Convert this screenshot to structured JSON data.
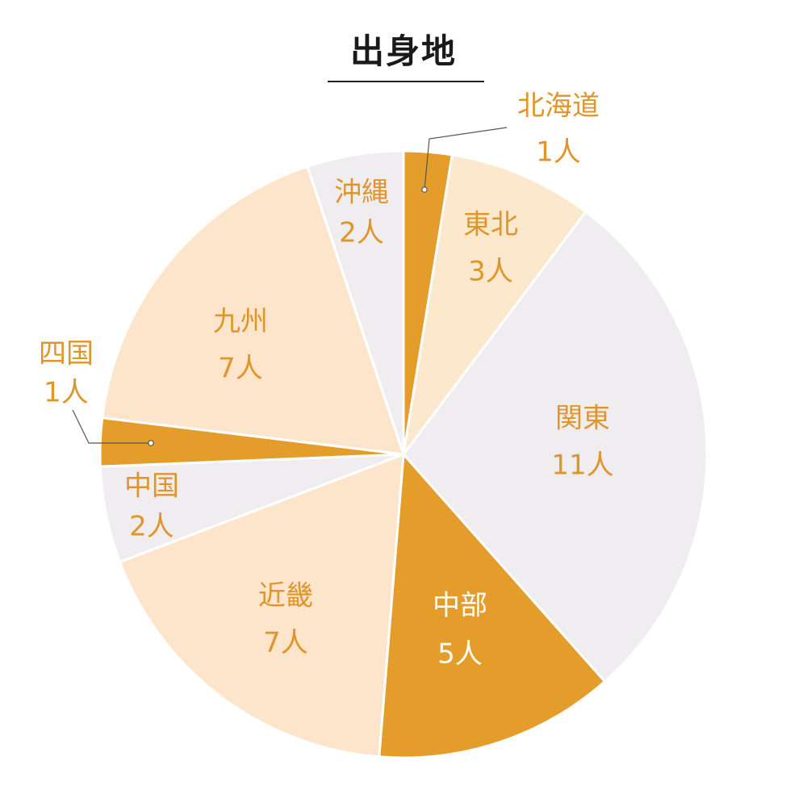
{
  "chart_data": {
    "type": "pie",
    "title": "出身地",
    "unit": "人",
    "slices": [
      {
        "label": "北海道",
        "value": 1,
        "value_text": "1人",
        "color": "#E49C2B",
        "text_color": "#E0952A"
      },
      {
        "label": "東北",
        "value": 3,
        "value_text": "3人",
        "color": "#FCE8CC",
        "text_color": "#E0952A"
      },
      {
        "label": "関東",
        "value": 11,
        "value_text": "11人",
        "color": "#F0EDF0",
        "text_color": "#E0952A"
      },
      {
        "label": "中部",
        "value": 5,
        "value_text": "5人",
        "color": "#E49C2B",
        "text_color": "#FFFFFF"
      },
      {
        "label": "近畿",
        "value": 7,
        "value_text": "7人",
        "color": "#FCE5CB",
        "text_color": "#E0952A"
      },
      {
        "label": "中国",
        "value": 2,
        "value_text": "2人",
        "color": "#F0EDF0",
        "text_color": "#E0952A"
      },
      {
        "label": "四国",
        "value": 1,
        "value_text": "1人",
        "color": "#E49C2B",
        "text_color": "#E0952A"
      },
      {
        "label": "九州",
        "value": 7,
        "value_text": "7人",
        "color": "#FCE5CB",
        "text_color": "#E0952A"
      },
      {
        "label": "沖縄",
        "value": 2,
        "value_text": "2人",
        "color": "#F0EDF0",
        "text_color": "#E0952A"
      }
    ]
  }
}
